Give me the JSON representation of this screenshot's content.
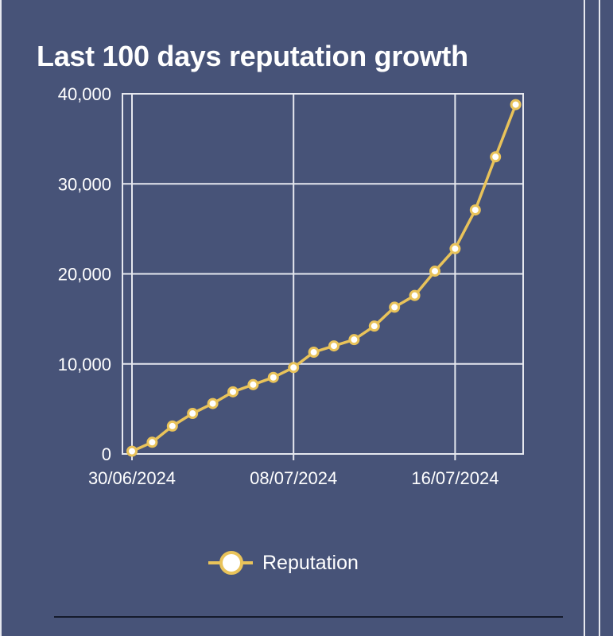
{
  "colors": {
    "background": "#475378",
    "grid": "#e6e8ef",
    "series": "#e9c35a",
    "marker_fill": "#ffffff",
    "text": "#ffffff"
  },
  "chart_data": {
    "type": "line",
    "title": "Last 100 days reputation growth",
    "xlabel": "",
    "ylabel": "",
    "x_tick_labels": [
      "30/06/2024",
      "08/07/2024",
      "16/07/2024"
    ],
    "y_tick_labels": [
      "0",
      "10,000",
      "20,000",
      "30,000",
      "40,000"
    ],
    "y_ticks": [
      0,
      10000,
      20000,
      30000,
      40000
    ],
    "ylim": [
      0,
      40000
    ],
    "grid": true,
    "legend_position": "bottom-center",
    "x": [
      "30/06/2024",
      "01/07/2024",
      "02/07/2024",
      "03/07/2024",
      "04/07/2024",
      "05/07/2024",
      "06/07/2024",
      "07/07/2024",
      "08/07/2024",
      "09/07/2024",
      "10/07/2024",
      "11/07/2024",
      "12/07/2024",
      "13/07/2024",
      "14/07/2024",
      "15/07/2024",
      "16/07/2024",
      "17/07/2024",
      "18/07/2024",
      "19/07/2024"
    ],
    "series": [
      {
        "name": "Reputation",
        "values": [
          300,
          1300,
          3100,
          4500,
          5600,
          6900,
          7700,
          8500,
          9600,
          11300,
          12000,
          12700,
          14200,
          16300,
          17600,
          20300,
          22800,
          27100,
          33000,
          38800
        ]
      }
    ]
  }
}
